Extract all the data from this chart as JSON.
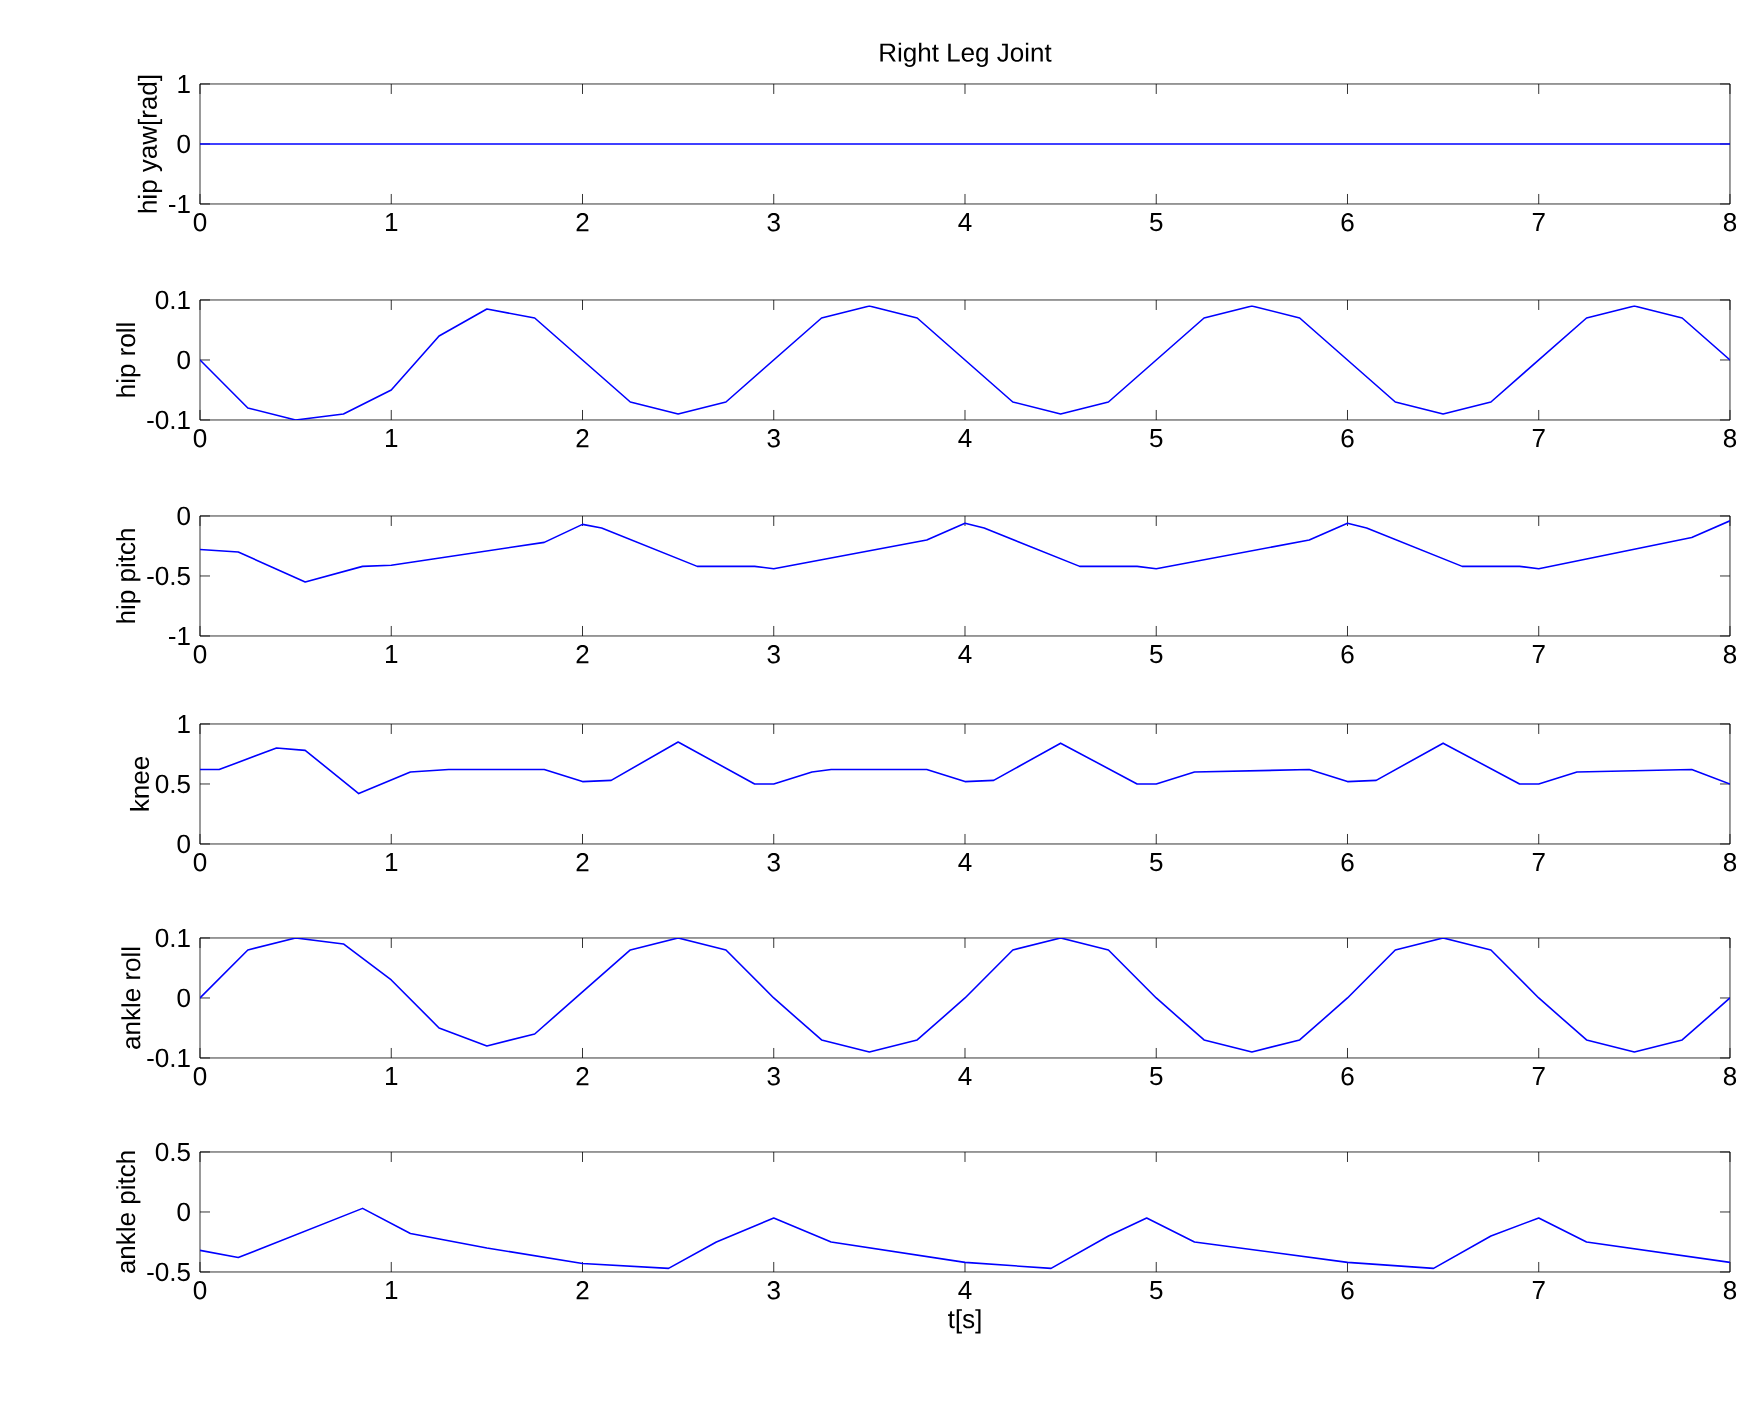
{
  "chart_data": [
    {
      "type": "line",
      "title": "Right Leg Joint",
      "ylabel": "hip yaw[rad]",
      "xlim": [
        0,
        8
      ],
      "xticks": [
        0,
        1,
        2,
        3,
        4,
        5,
        6,
        7,
        8
      ],
      "ylim": [
        -1,
        1
      ],
      "yticks": [
        -1,
        0,
        1
      ],
      "x": [
        0,
        8
      ],
      "values": [
        0,
        0
      ],
      "color": "#0000ff"
    },
    {
      "type": "line",
      "ylabel": "hip roll",
      "xlim": [
        0,
        8
      ],
      "xticks": [
        0,
        1,
        2,
        3,
        4,
        5,
        6,
        7,
        8
      ],
      "ylim": [
        -0.1,
        0.1
      ],
      "yticks": [
        -0.1,
        0,
        0.1
      ],
      "x": [
        0,
        0.25,
        0.5,
        0.75,
        1,
        1.25,
        1.5,
        1.75,
        2,
        2.25,
        2.5,
        2.75,
        3,
        3.25,
        3.5,
        3.75,
        4,
        4.25,
        4.5,
        4.75,
        5,
        5.25,
        5.5,
        5.75,
        6,
        6.25,
        6.5,
        6.75,
        7,
        7.25,
        7.5,
        7.75,
        8
      ],
      "values": [
        0,
        -0.08,
        -0.1,
        -0.09,
        -0.05,
        0.04,
        0.085,
        0.07,
        0,
        -0.07,
        -0.09,
        -0.07,
        0,
        0.07,
        0.09,
        0.07,
        0,
        -0.07,
        -0.09,
        -0.07,
        0,
        0.07,
        0.09,
        0.07,
        0,
        -0.07,
        -0.09,
        -0.07,
        0,
        0.07,
        0.09,
        0.07,
        0
      ],
      "color": "#0000ff"
    },
    {
      "type": "line",
      "ylabel": "hip pitch",
      "xlim": [
        0,
        8
      ],
      "xticks": [
        0,
        1,
        2,
        3,
        4,
        5,
        6,
        7,
        8
      ],
      "ylim": [
        -1,
        0
      ],
      "yticks": [
        -1,
        -0.5,
        0
      ],
      "x": [
        0,
        0.2,
        0.55,
        0.85,
        1,
        1.8,
        2,
        2.1,
        2.6,
        2.9,
        3,
        3.8,
        4,
        4.1,
        4.6,
        4.9,
        5,
        5.8,
        6,
        6.1,
        6.6,
        6.9,
        7,
        7.8,
        8
      ],
      "values": [
        -0.28,
        -0.3,
        -0.55,
        -0.42,
        -0.41,
        -0.22,
        -0.07,
        -0.1,
        -0.42,
        -0.42,
        -0.44,
        -0.2,
        -0.06,
        -0.1,
        -0.42,
        -0.42,
        -0.44,
        -0.2,
        -0.06,
        -0.1,
        -0.42,
        -0.42,
        -0.44,
        -0.18,
        -0.04
      ],
      "color": "#0000ff"
    },
    {
      "type": "line",
      "ylabel": "knee",
      "xlim": [
        0,
        8
      ],
      "xticks": [
        0,
        1,
        2,
        3,
        4,
        5,
        6,
        7,
        8
      ],
      "ylim": [
        0,
        1
      ],
      "yticks": [
        0,
        0.5,
        1
      ],
      "x": [
        0,
        0.1,
        0.4,
        0.55,
        0.83,
        1.1,
        1.3,
        1.8,
        2,
        2.15,
        2.5,
        2.9,
        3,
        3.2,
        3.3,
        3.8,
        4,
        4.15,
        4.5,
        4.9,
        5,
        5.2,
        5.8,
        6,
        6.15,
        6.5,
        6.9,
        7,
        7.2,
        7.8,
        8
      ],
      "values": [
        0.62,
        0.62,
        0.8,
        0.78,
        0.42,
        0.6,
        0.62,
        0.62,
        0.52,
        0.53,
        0.85,
        0.5,
        0.5,
        0.6,
        0.62,
        0.62,
        0.52,
        0.53,
        0.84,
        0.5,
        0.5,
        0.6,
        0.62,
        0.52,
        0.53,
        0.84,
        0.5,
        0.5,
        0.6,
        0.62,
        0.5
      ],
      "color": "#0000ff"
    },
    {
      "type": "line",
      "ylabel": "ankle roll",
      "xlim": [
        0,
        8
      ],
      "xticks": [
        0,
        1,
        2,
        3,
        4,
        5,
        6,
        7,
        8
      ],
      "ylim": [
        -0.1,
        0.1
      ],
      "yticks": [
        -0.1,
        0,
        0.1
      ],
      "x": [
        0,
        0.25,
        0.5,
        0.75,
        1,
        1.25,
        1.5,
        1.75,
        2,
        2.25,
        2.5,
        2.75,
        3,
        3.25,
        3.5,
        3.75,
        4,
        4.25,
        4.5,
        4.75,
        5,
        5.25,
        5.5,
        5.75,
        6,
        6.25,
        6.5,
        6.75,
        7,
        7.25,
        7.5,
        7.75,
        8
      ],
      "values": [
        0,
        0.08,
        0.1,
        0.09,
        0.03,
        -0.05,
        -0.08,
        -0.06,
        0.01,
        0.08,
        0.1,
        0.08,
        0,
        -0.07,
        -0.09,
        -0.07,
        0,
        0.08,
        0.1,
        0.08,
        0,
        -0.07,
        -0.09,
        -0.07,
        0,
        0.08,
        0.1,
        0.08,
        0,
        -0.07,
        -0.09,
        -0.07,
        0
      ],
      "color": "#0000ff"
    },
    {
      "type": "line",
      "ylabel": "ankle pitch",
      "xlabel": "t[s]",
      "xlim": [
        0,
        8
      ],
      "xticks": [
        0,
        1,
        2,
        3,
        4,
        5,
        6,
        7,
        8
      ],
      "ylim": [
        -0.5,
        0.5
      ],
      "yticks": [
        -0.5,
        0,
        0.5
      ],
      "x": [
        0,
        0.2,
        0.85,
        1.1,
        1.5,
        2,
        2.45,
        2.7,
        3,
        3.3,
        4,
        4.45,
        4.75,
        4.95,
        5.2,
        6,
        6.45,
        6.75,
        7,
        7.25,
        8
      ],
      "values": [
        -0.32,
        -0.38,
        0.03,
        -0.18,
        -0.3,
        -0.43,
        -0.47,
        -0.25,
        -0.05,
        -0.25,
        -0.42,
        -0.47,
        -0.2,
        -0.05,
        -0.25,
        -0.42,
        -0.47,
        -0.2,
        -0.05,
        -0.25,
        -0.42
      ],
      "color": "#0000ff"
    }
  ]
}
